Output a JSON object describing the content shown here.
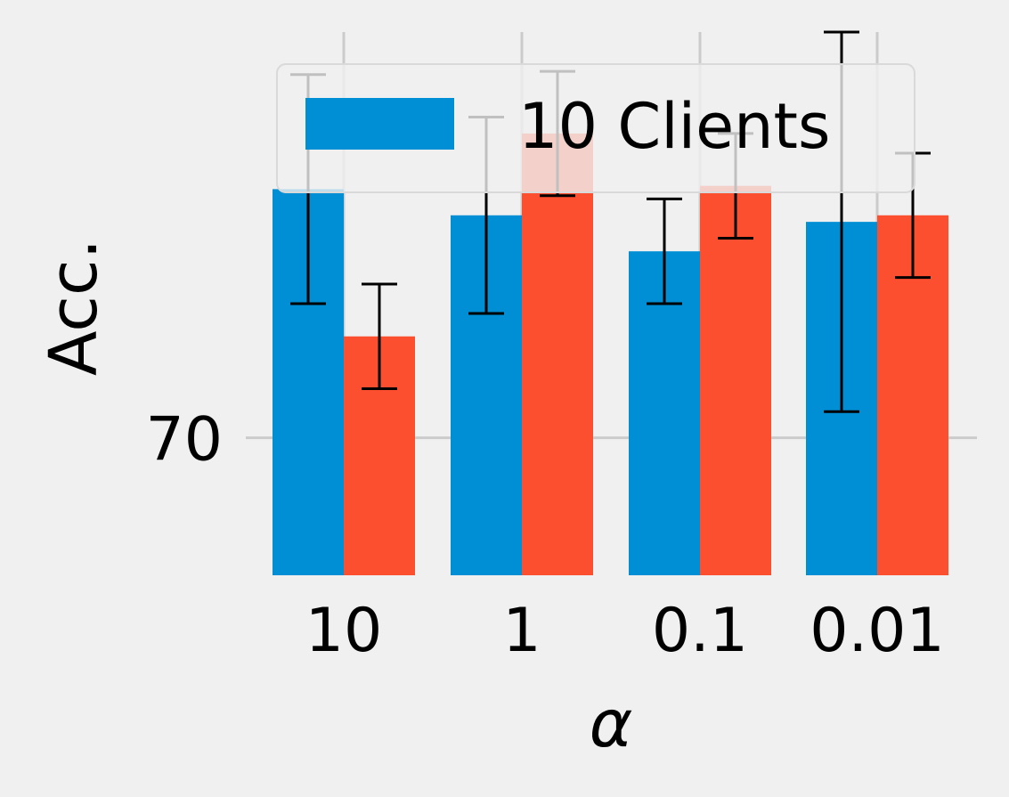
{
  "chart_data": {
    "type": "bar",
    "categories": [
      "10",
      "1",
      "0.1",
      "0.01"
    ],
    "xlabel": "α",
    "ylabel": "Acc.",
    "yticks": [
      70
    ],
    "ylim": [
      67.9,
      76.2
    ],
    "grid": true,
    "legend_position": "top",
    "series": [
      {
        "name": "10 Clients",
        "color": "#008fd5",
        "values": [
          73.8,
          73.4,
          72.85,
          73.3
        ],
        "error": [
          1.75,
          1.5,
          0.8,
          2.9
        ]
      },
      {
        "name": "",
        "color": "#fc4f30",
        "values": [
          71.55,
          74.65,
          73.85,
          73.4
        ],
        "error": [
          0.8,
          0.95,
          0.8,
          0.95
        ]
      }
    ]
  }
}
